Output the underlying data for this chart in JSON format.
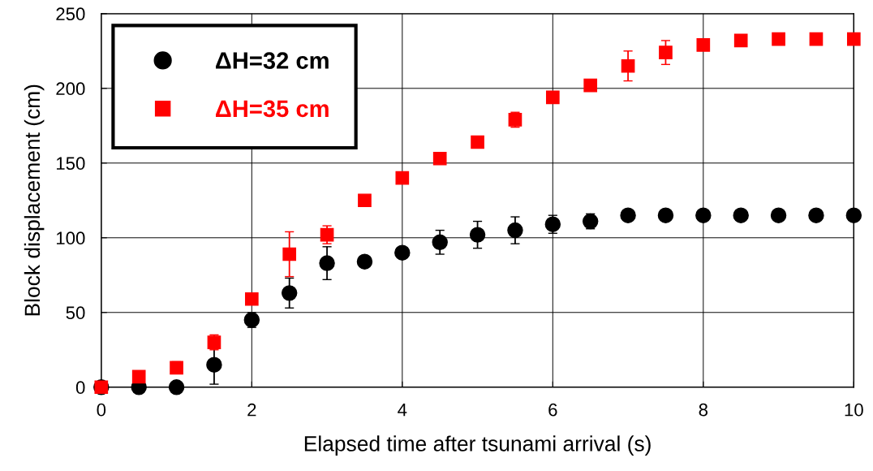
{
  "chart_data": {
    "type": "scatter",
    "xlabel": "Elapsed time after tsunami arrival (s)",
    "ylabel": "Block displacement (cm)",
    "x": [
      0,
      0.5,
      1,
      1.5,
      2,
      2.5,
      3,
      3.5,
      4,
      4.5,
      5,
      5.5,
      6,
      6.5,
      7,
      7.5,
      8,
      8.5,
      9,
      9.5,
      10
    ],
    "series": [
      {
        "name": "ΔH=32 cm",
        "color": "#000000",
        "marker": "circle",
        "values": [
          0,
          0,
          0,
          15,
          45,
          63,
          83,
          84,
          90,
          97,
          102,
          105,
          109,
          111,
          115,
          115,
          115,
          115,
          115,
          115,
          115
        ],
        "errors": [
          null,
          null,
          null,
          13,
          5,
          10,
          11,
          null,
          3,
          8,
          9,
          9,
          6,
          5,
          null,
          null,
          null,
          null,
          null,
          null,
          null
        ]
      },
      {
        "name": "ΔH=35 cm",
        "color": "#ff0000",
        "marker": "square",
        "values": [
          0,
          7,
          13,
          30,
          59,
          89,
          102,
          125,
          140,
          153,
          164,
          179,
          194,
          202,
          215,
          224,
          229,
          232,
          233,
          233,
          233
        ],
        "errors": [
          null,
          null,
          4,
          5,
          3,
          15,
          6,
          null,
          null,
          2,
          null,
          5,
          null,
          null,
          10,
          8,
          null,
          null,
          null,
          null,
          null
        ]
      }
    ],
    "xlim": [
      0,
      10
    ],
    "xticks": [
      0,
      2,
      4,
      6,
      8,
      10
    ],
    "ylim": [
      0,
      250
    ],
    "yticks": [
      0,
      50,
      100,
      150,
      200,
      250
    ],
    "grid": true,
    "legend": "top left"
  }
}
